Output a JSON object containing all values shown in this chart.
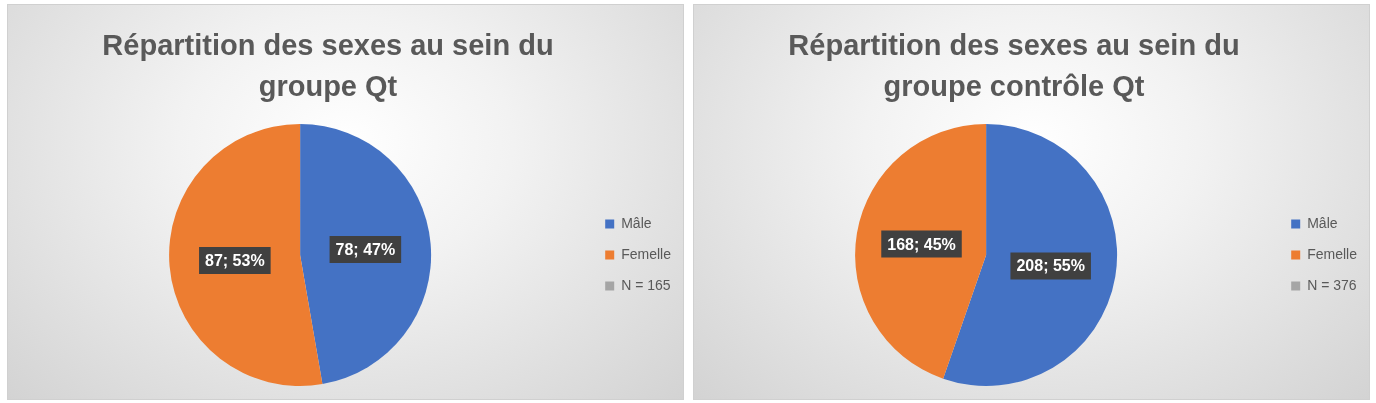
{
  "chart_data": [
    {
      "type": "pie",
      "title": "Répartition des sexes au sein du groupe Qt",
      "categories": [
        "Mâle",
        "Femelle",
        "N = 165"
      ],
      "values": [
        78,
        87,
        null
      ],
      "colors": [
        "#4472c4",
        "#ed7d31",
        "#a5a5a5"
      ],
      "value_labels": [
        "78; 47%",
        "87; 53%",
        null
      ],
      "legend": "right"
    },
    {
      "type": "pie",
      "title": "Répartition des sexes au sein du groupe contrôle Qt",
      "categories": [
        "Mâle",
        "Femelle",
        "N = 376"
      ],
      "values": [
        208,
        168,
        null
      ],
      "colors": [
        "#4472c4",
        "#ed7d31",
        "#a5a5a5"
      ],
      "value_labels": [
        "208; 55%",
        "168; 45%",
        null
      ],
      "legend": "right"
    }
  ]
}
